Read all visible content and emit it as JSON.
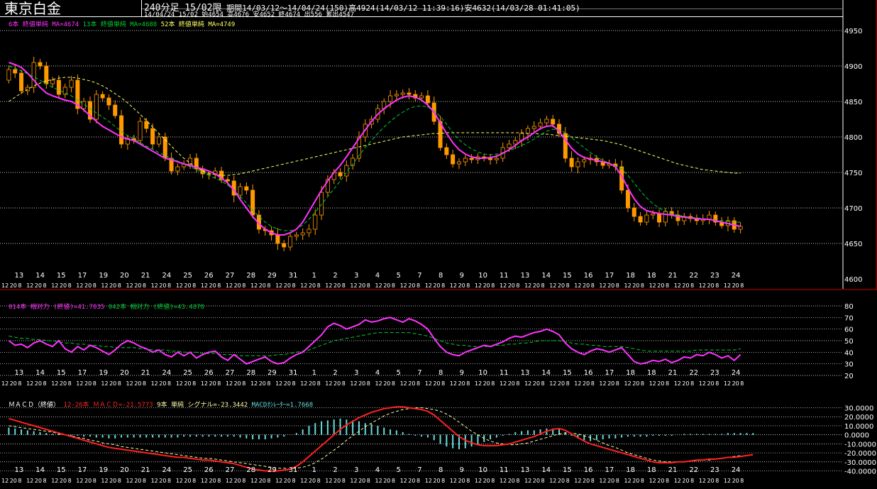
{
  "header": {
    "title": "東京白金",
    "subtitle": "240分足 15/02限",
    "period": "期間14/03/12～14/04/24(150)高4924(14/03/12 11:39:16)安4632(14/03/28 01:41:05)",
    "ohlc": "14/04/24 15/02 始4654 高4676 安4652 終4674 出556 累出4547"
  },
  "colors": {
    "background": "#000000",
    "up_candle": "#000000",
    "down_candle": "#ff9900",
    "ma6": "#ff33ff",
    "ma13": "#00cc33",
    "ma52": "#ffff66",
    "rsi14": "#ff33ff",
    "rsi42": "#00cc33",
    "macd": "#ff2222",
    "signal": "#ffffaa",
    "osc": "#66dddd"
  },
  "chart_data": [
    {
      "type": "candlestick",
      "legend": [
        {
          "text": "6本 終値単純 MA=4674",
          "color": "#ff33ff"
        },
        {
          "text": "13本 終値単純 MA=4680",
          "color": "#00cc33"
        },
        {
          "text": "52本 終値単純 MA=4749",
          "color": "#ffff66"
        }
      ],
      "ylim": [
        4600,
        4965
      ],
      "yticks": [
        4600,
        4650,
        4700,
        4750,
        4800,
        4850,
        4900,
        4950
      ],
      "day_labels": [
        "13",
        "14",
        "15",
        "17",
        "19",
        "20",
        "21",
        "24",
        "25",
        "26",
        "27",
        "28",
        "29",
        "31",
        "1",
        "2",
        "3",
        "4",
        "5",
        "7",
        "8",
        "9",
        "10",
        "11",
        "13",
        "14",
        "15",
        "16",
        "17",
        "18",
        "18",
        "21",
        "22",
        "23",
        "24"
      ],
      "hour_labels": [
        "12",
        "20",
        "8"
      ],
      "close": [
        4895,
        4890,
        4865,
        4870,
        4905,
        4900,
        4875,
        4880,
        4860,
        4870,
        4880,
        4840,
        4850,
        4825,
        4860,
        4855,
        4845,
        4830,
        4790,
        4798,
        4795,
        4822,
        4812,
        4790,
        4800,
        4770,
        4752,
        4758,
        4762,
        4770,
        4755,
        4748,
        4748,
        4752,
        4740,
        4738,
        4718,
        4730,
        4725,
        4690,
        4670,
        4668,
        4662,
        4650,
        4645,
        4660,
        4662,
        4665,
        4670,
        4690,
        4722,
        4740,
        4750,
        4745,
        4760,
        4770,
        4800,
        4818,
        4825,
        4840,
        4850,
        4858,
        4860,
        4862,
        4860,
        4855,
        4858,
        4848,
        4822,
        4785,
        4775,
        4762,
        4765,
        4770,
        4768,
        4772,
        4770,
        4768,
        4770,
        4785,
        4790,
        4795,
        4805,
        4812,
        4815,
        4820,
        4825,
        4818,
        4805,
        4770,
        4758,
        4765,
        4768,
        4770,
        4765,
        4760,
        4762,
        4758,
        4725,
        4700,
        4688,
        4680,
        4690,
        4692,
        4680,
        4695,
        4690,
        4682,
        4688,
        4685,
        4682,
        4684,
        4690,
        4680,
        4675,
        4682,
        4670,
        4674
      ],
      "ma6": [
        4905,
        4902,
        4898,
        4890,
        4880,
        4870,
        4862,
        4858,
        4855,
        4852,
        4850,
        4845,
        4838,
        4830,
        4822,
        4815,
        4810,
        4805,
        4800,
        4797,
        4795,
        4790,
        4785,
        4780,
        4775,
        4770,
        4768,
        4765,
        4762,
        4760,
        4757,
        4755,
        4752,
        4748,
        4742,
        4735,
        4725,
        4712,
        4700,
        4688,
        4678,
        4670,
        4665,
        4662,
        4662,
        4665,
        4670,
        4680,
        4695,
        4710,
        4725,
        4738,
        4750,
        4760,
        4772,
        4785,
        4798,
        4810,
        4822,
        4832,
        4840,
        4846,
        4852,
        4856,
        4858,
        4856,
        4852,
        4845,
        4835,
        4820,
        4805,
        4792,
        4782,
        4776,
        4772,
        4770,
        4770,
        4771,
        4773,
        4777,
        4782,
        4788,
        4795,
        4800,
        4806,
        4812,
        4815,
        4816,
        4808,
        4796,
        4784,
        4776,
        4771,
        4769,
        4767,
        4765,
        4763,
        4758,
        4745,
        4728,
        4713,
        4702,
        4696,
        4694,
        4692,
        4691,
        4690,
        4688,
        4687,
        4686,
        4685,
        4684,
        4684,
        4682,
        4680,
        4678,
        4676,
        4674
      ],
      "ma13": [
        4900,
        4897,
        4893,
        4889,
        4885,
        4880,
        4875,
        4870,
        4866,
        4862,
        4858,
        4852,
        4846,
        4840,
        4834,
        4828,
        4822,
        4815,
        4808,
        4802,
        4797,
        4792,
        4787,
        4783,
        4778,
        4774,
        4770,
        4766,
        4762,
        4758,
        4754,
        4750,
        4746,
        4742,
        4738,
        4732,
        4725,
        4716,
        4707,
        4697,
        4688,
        4680,
        4674,
        4670,
        4668,
        4668,
        4670,
        4676,
        4684,
        4694,
        4705,
        4716,
        4727,
        4738,
        4750,
        4762,
        4774,
        4785,
        4795,
        4805,
        4814,
        4822,
        4829,
        4835,
        4840,
        4843,
        4844,
        4842,
        4837,
        4829,
        4818,
        4806,
        4796,
        4789,
        4783,
        4779,
        4776,
        4775,
        4776,
        4778,
        4781,
        4784,
        4788,
        4792,
        4797,
        4803,
        4808,
        4811,
        4810,
        4806,
        4799,
        4792,
        4785,
        4778,
        4772,
        4767,
        4763,
        4760,
        4755,
        4746,
        4735,
        4724,
        4714,
        4706,
        4700,
        4695,
        4692,
        4690,
        4688,
        4687,
        4686,
        4685,
        4684,
        4683,
        4682,
        4681,
        4680,
        4680
      ],
      "ma52": [
        4850,
        4856,
        4862,
        4867,
        4872,
        4876,
        4879,
        4881,
        4883,
        4884,
        4884,
        4883,
        4881,
        4879,
        4876,
        4872,
        4867,
        4861,
        4855,
        4848,
        4840,
        4832,
        4823,
        4814,
        4805,
        4796,
        4787,
        4778,
        4770,
        4763,
        4757,
        4752,
        4749,
        4747,
        4746,
        4746,
        4747,
        4748,
        4750,
        4752,
        4754,
        4756,
        4758,
        4760,
        4762,
        4764,
        4766,
        4768,
        4770,
        4772,
        4774,
        4776,
        4778,
        4780,
        4782,
        4784,
        4786,
        4788,
        4790,
        4792,
        4794,
        4796,
        4798,
        4800,
        4801,
        4802,
        4803,
        4804,
        4805,
        4805,
        4806,
        4806,
        4806,
        4806,
        4806,
        4806,
        4806,
        4806,
        4806,
        4806,
        4806,
        4806,
        4806,
        4805,
        4805,
        4804,
        4804,
        4803,
        4802,
        4801,
        4800,
        4799,
        4798,
        4797,
        4796,
        4795,
        4793,
        4791,
        4789,
        4786,
        4783,
        4780,
        4777,
        4774,
        4771,
        4768,
        4765,
        4762,
        4760,
        4758,
        4756,
        4754,
        4753,
        4752,
        4751,
        4750,
        4749,
        4749
      ]
    },
    {
      "type": "line",
      "legend": [
        {
          "text": "014本 相対力 (終値)=41.7035",
          "color": "#ff33ff"
        },
        {
          "text": "042本 相対力 (終値)=43.4878",
          "color": "#00cc33"
        }
      ],
      "ylim": [
        20,
        80
      ],
      "yticks": [
        20,
        30,
        40,
        50,
        60,
        70,
        80
      ],
      "rsi14": [
        50,
        46,
        47,
        44,
        48,
        50,
        47,
        45,
        50,
        43,
        40,
        45,
        42,
        46,
        44,
        41,
        38,
        42,
        47,
        50,
        48,
        45,
        43,
        40,
        42,
        38,
        36,
        40,
        37,
        40,
        35,
        38,
        40,
        41,
        36,
        33,
        38,
        34,
        30,
        32,
        34,
        36,
        32,
        30,
        31,
        35,
        38,
        40,
        45,
        50,
        55,
        62,
        65,
        63,
        60,
        62,
        64,
        68,
        66,
        67,
        69,
        70,
        68,
        66,
        69,
        67,
        64,
        60,
        52,
        45,
        40,
        38,
        37,
        40,
        42,
        44,
        46,
        45,
        47,
        49,
        52,
        54,
        53,
        55,
        57,
        58,
        60,
        58,
        55,
        48,
        43,
        40,
        38,
        41,
        43,
        42,
        40,
        42,
        44,
        38,
        32,
        30,
        31,
        33,
        32,
        34,
        31,
        33,
        36,
        35,
        38,
        37,
        40,
        38,
        35,
        37,
        33,
        38
      ],
      "rsi42": [
        54,
        53,
        52,
        52,
        51,
        51,
        50,
        50,
        49,
        48,
        48,
        47,
        47,
        46,
        46,
        45,
        45,
        44,
        44,
        44,
        44,
        43,
        43,
        42,
        42,
        42,
        41,
        41,
        40,
        40,
        40,
        39,
        39,
        39,
        38,
        38,
        38,
        37,
        37,
        37,
        37,
        37,
        37,
        38,
        38,
        39,
        40,
        41,
        42,
        44,
        46,
        48,
        50,
        51,
        52,
        53,
        54,
        55,
        56,
        57,
        57,
        57,
        57,
        57,
        57,
        56,
        55,
        54,
        52,
        50,
        48,
        47,
        46,
        46,
        45,
        45,
        45,
        45,
        46,
        46,
        47,
        47,
        48,
        48,
        49,
        50,
        50,
        50,
        50,
        49,
        48,
        47,
        47,
        46,
        46,
        45,
        45,
        45,
        45,
        44,
        43,
        42,
        41,
        41,
        41,
        41,
        41,
        41,
        41,
        41,
        42,
        42,
        42,
        42,
        42,
        42,
        42,
        43
      ]
    },
    {
      "type": "bar+line",
      "legend": [
        {
          "text": "ＭＡＣＤ（終値）",
          "color": "#ffffff"
        },
        {
          "text": "12-26本 ＭＡＣＤ=-21.5773",
          "color": "#ff2222"
        },
        {
          "text": "9本 単純 シグナル=-23.3442",
          "color": "#ffffaa"
        },
        {
          "text": "MACDｵｼﾚｰﾀｰ=1.7668",
          "color": "#66dddd"
        }
      ],
      "ylim": [
        -42,
        32
      ],
      "yticks": [
        30,
        20,
        10,
        0,
        -10,
        -20,
        -30,
        -40
      ],
      "ytick_labels": [
        "30.0000",
        "20.0000",
        "10.0000",
        "0.0000",
        "-10.0000",
        "-20.0000",
        "-30.0000",
        "-40.0000"
      ],
      "macd": [
        18,
        16,
        14,
        12,
        10,
        8,
        6,
        4,
        2,
        0,
        -2,
        -4,
        -6,
        -8,
        -10,
        -12,
        -14,
        -15,
        -16,
        -17,
        -18,
        -19,
        -20,
        -21,
        -22,
        -23,
        -24,
        -25,
        -25,
        -26,
        -27,
        -28,
        -28,
        -29,
        -30,
        -31,
        -32,
        -34,
        -36,
        -38,
        -39,
        -40,
        -40,
        -40,
        -39,
        -38,
        -35,
        -30,
        -24,
        -18,
        -12,
        -6,
        0,
        6,
        11,
        15,
        19,
        22,
        25,
        27,
        29,
        30,
        31,
        31,
        30,
        29,
        28,
        26,
        22,
        16,
        10,
        4,
        -2,
        -6,
        -9,
        -11,
        -12,
        -12,
        -12,
        -11,
        -10,
        -8,
        -6,
        -4,
        -2,
        1,
        4,
        6,
        7,
        5,
        1,
        -3,
        -7,
        -10,
        -12,
        -14,
        -16,
        -18,
        -20,
        -22,
        -24,
        -26,
        -28,
        -30,
        -31,
        -31,
        -31,
        -30,
        -30,
        -29,
        -28,
        -28,
        -27,
        -27,
        -26,
        -25,
        -25,
        -24,
        -23,
        -22
      ],
      "signal": [
        10,
        9,
        8,
        7,
        6,
        5,
        4,
        3,
        1,
        0,
        -1,
        -3,
        -4,
        -6,
        -7,
        -9,
        -10,
        -11,
        -13,
        -14,
        -15,
        -16,
        -17,
        -18,
        -19,
        -20,
        -21,
        -22,
        -23,
        -24,
        -25,
        -26,
        -26,
        -27,
        -28,
        -29,
        -30,
        -31,
        -32,
        -33,
        -34,
        -35,
        -36,
        -37,
        -37,
        -38,
        -37,
        -36,
        -34,
        -31,
        -27,
        -22,
        -17,
        -12,
        -6,
        -1,
        4,
        9,
        13,
        17,
        21,
        24,
        26,
        28,
        29,
        30,
        30,
        29,
        28,
        26,
        23,
        19,
        14,
        9,
        4,
        0,
        -4,
        -7,
        -9,
        -10,
        -11,
        -11,
        -10,
        -9,
        -7,
        -5,
        -3,
        -1,
        1,
        2,
        2,
        1,
        -1,
        -3,
        -6,
        -9,
        -12,
        -14,
        -17,
        -20,
        -22,
        -24,
        -26,
        -28,
        -29,
        -30,
        -30,
        -30,
        -30,
        -29,
        -29,
        -28,
        -28,
        -27,
        -26,
        -25,
        -24,
        -23
      ],
      "osc": [
        8,
        7,
        6,
        5,
        4,
        3,
        2,
        1,
        1,
        0,
        -1,
        -1,
        -2,
        -2,
        -3,
        -3,
        -4,
        -4,
        -3,
        -3,
        -3,
        -3,
        -3,
        -3,
        -3,
        -3,
        -3,
        -3,
        -2,
        -2,
        -2,
        -2,
        -2,
        -2,
        -2,
        -2,
        -2,
        -3,
        -4,
        -5,
        -5,
        -5,
        -4,
        -3,
        -2,
        0,
        2,
        6,
        10,
        13,
        15,
        16,
        17,
        18,
        17,
        16,
        15,
        13,
        12,
        10,
        8,
        6,
        5,
        3,
        1,
        -1,
        -2,
        -3,
        -6,
        -10,
        -13,
        -15,
        -16,
        -15,
        -13,
        -11,
        -8,
        -5,
        -3,
        -1,
        1,
        3,
        4,
        5,
        5,
        6,
        7,
        7,
        6,
        3,
        -1,
        -4,
        -6,
        -7,
        -6,
        -5,
        -4,
        -4,
        -3,
        -2,
        -2,
        -2,
        -2,
        -1,
        -1,
        -1,
        -1,
        0,
        1,
        1,
        1,
        1,
        1,
        1,
        1,
        2,
        2,
        2,
        2,
        2
      ]
    }
  ]
}
